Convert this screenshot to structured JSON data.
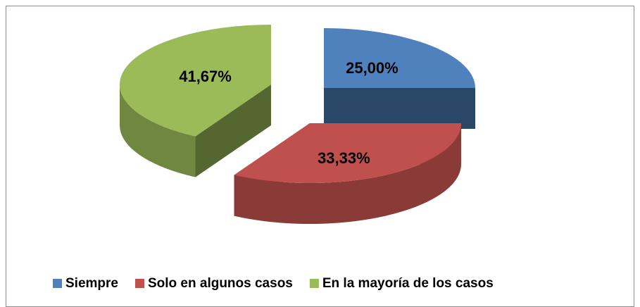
{
  "chart_data": {
    "type": "pie",
    "labels": [
      "Siempre",
      "Solo en algunos casos",
      "En la mayoría de los casos"
    ],
    "values": [
      25,
      33.33,
      41.67
    ],
    "value_labels": [
      "25,00%",
      "33,33%",
      "41,67%"
    ],
    "colors": [
      "#4f81bd",
      "#c0504d",
      "#9bbb59"
    ],
    "legend": "bottom"
  }
}
